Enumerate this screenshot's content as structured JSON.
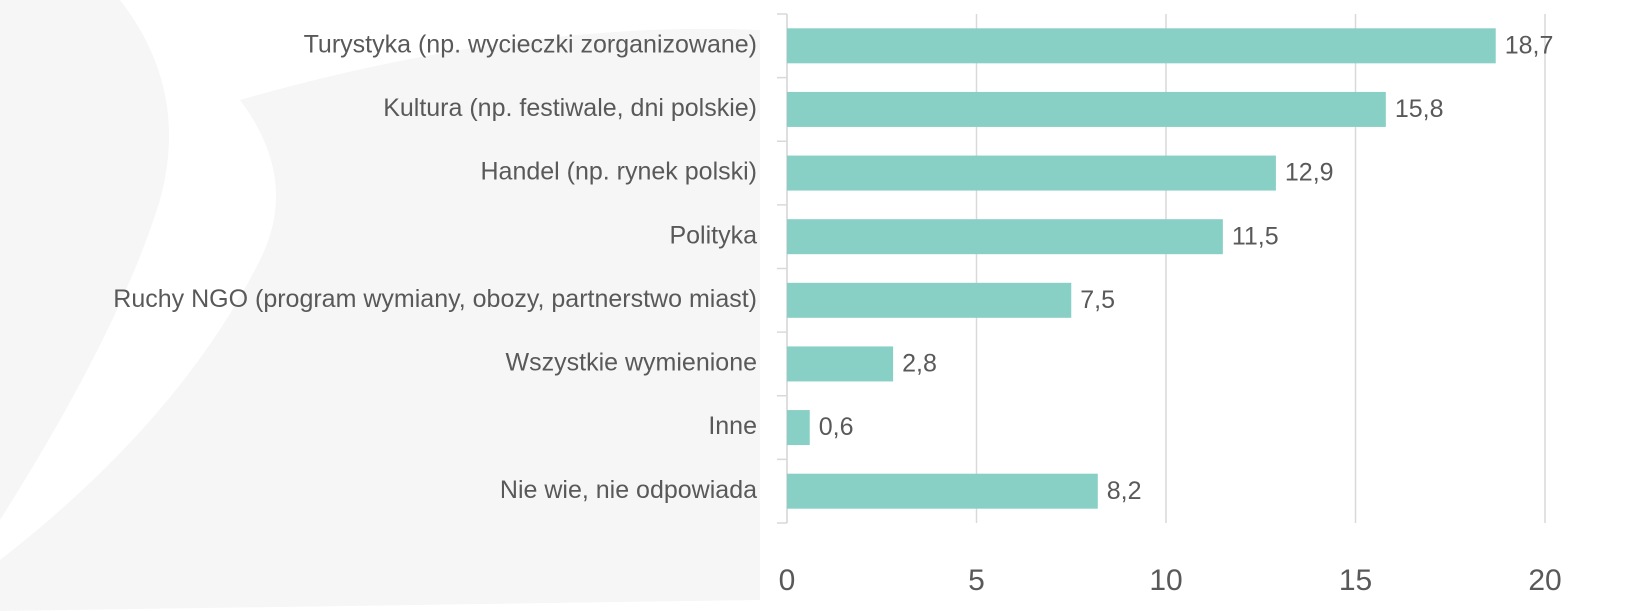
{
  "chart_data": {
    "type": "bar",
    "orientation": "horizontal",
    "categories": [
      "Turystyka (np. wycieczki zorganizowane)",
      "Kultura (np. festiwale, dni polskie)",
      "Handel (np. rynek polski)",
      "Polityka",
      "Ruchy NGO (program wymiany, obozy, partnerstwo miast)",
      "Wszystkie wymienione",
      "Inne",
      "Nie wie, nie odpowiada"
    ],
    "values": [
      18.7,
      15.8,
      12.9,
      11.5,
      7.5,
      2.8,
      0.6,
      8.2
    ],
    "value_labels": [
      "18,7",
      "15,8",
      "12,9",
      "11,5",
      "7,5",
      "2,8",
      "0,6",
      "8,2"
    ],
    "color": "#88cfc6",
    "xlim": [
      0,
      20
    ],
    "xticks": [
      0,
      5,
      10,
      15,
      20
    ],
    "grid": true
  }
}
